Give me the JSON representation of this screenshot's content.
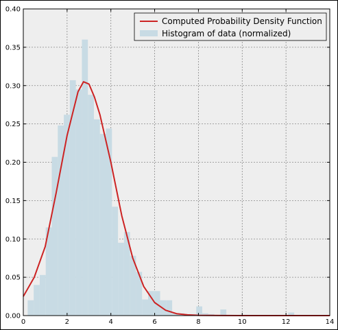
{
  "chart_data": {
    "type": "bar",
    "title": "",
    "xlabel": "",
    "ylabel": "",
    "xlim": [
      0,
      14
    ],
    "ylim": [
      0,
      0.4
    ],
    "x_ticks": [
      0,
      2,
      4,
      6,
      8,
      10,
      12,
      14
    ],
    "y_ticks": [
      0.0,
      0.05,
      0.1,
      0.15,
      0.2,
      0.25,
      0.3,
      0.35,
      0.4
    ],
    "x_tick_labels": [
      "0",
      "2",
      "4",
      "6",
      "8",
      "10",
      "12",
      "14"
    ],
    "y_tick_labels": [
      "0.00",
      "0.05",
      "0.10",
      "0.15",
      "0.20",
      "0.25",
      "0.30",
      "0.35",
      "0.40"
    ],
    "grid": true,
    "legend_position": "top-right",
    "legend": [
      {
        "label": "Computed Probability Density Function",
        "kind": "line",
        "color": "#cc2222"
      },
      {
        "label": "Histogram of data (normalized)",
        "kind": "patch",
        "color": "#c8dbe4"
      }
    ],
    "histogram": {
      "bin_width": 0.275,
      "color": "#c8dbe4",
      "bins": [
        [
          0.2,
          0.02
        ],
        [
          0.475,
          0.04
        ],
        [
          0.75,
          0.053
        ],
        [
          1.025,
          0.115
        ],
        [
          1.3,
          0.207
        ],
        [
          1.575,
          0.248
        ],
        [
          1.85,
          0.262
        ],
        [
          2.125,
          0.307
        ],
        [
          2.4,
          0.295
        ],
        [
          2.675,
          0.36
        ],
        [
          2.95,
          0.288
        ],
        [
          3.225,
          0.256
        ],
        [
          3.5,
          0.237
        ],
        [
          3.775,
          0.244
        ],
        [
          4.05,
          0.142
        ],
        [
          4.325,
          0.095
        ],
        [
          4.6,
          0.109
        ],
        [
          4.875,
          0.078
        ],
        [
          5.15,
          0.057
        ],
        [
          5.425,
          0.021
        ],
        [
          5.7,
          0.032
        ],
        [
          5.975,
          0.032
        ],
        [
          6.25,
          0.02
        ],
        [
          6.525,
          0.02
        ],
        [
          6.8,
          0.003
        ],
        [
          7.075,
          0.003
        ],
        [
          7.35,
          0.002
        ],
        [
          7.625,
          0.002
        ],
        [
          7.9,
          0.012
        ],
        [
          8.175,
          0.003
        ],
        [
          8.45,
          0.002
        ],
        [
          8.725,
          0.001
        ],
        [
          9.0,
          0.008
        ],
        [
          9.275,
          0.001
        ],
        [
          10.0,
          0.001
        ],
        [
          11.5,
          0.001
        ],
        [
          12.1,
          0.004
        ]
      ]
    },
    "pdf_curve": {
      "name": "Computed Probability Density Function",
      "color": "#cc2222",
      "x": [
        0,
        0.5,
        1.0,
        1.5,
        2.0,
        2.5,
        2.75,
        3.0,
        3.25,
        3.5,
        4.0,
        4.5,
        5.0,
        5.5,
        6.0,
        6.5,
        7.0,
        7.5,
        8.0,
        9.0,
        10.0,
        11.0,
        12.0,
        13.0,
        14.0
      ],
      "y": [
        0.025,
        0.05,
        0.09,
        0.16,
        0.235,
        0.292,
        0.305,
        0.302,
        0.285,
        0.262,
        0.2,
        0.13,
        0.075,
        0.038,
        0.017,
        0.007,
        0.0025,
        0.001,
        0.0003,
        0.0001,
        0,
        0,
        0,
        0,
        0
      ]
    }
  }
}
